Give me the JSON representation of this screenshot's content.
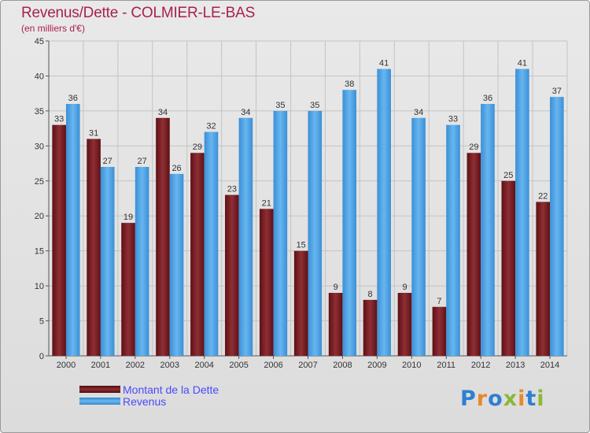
{
  "header": {
    "title": "Revenus/Dette - COLMIER-LE-BAS",
    "subtitle": "(en milliers d'€)"
  },
  "legend": [
    {
      "label": "Montant de la Dette",
      "color": "#7a1f25"
    },
    {
      "label": "Revenus",
      "color": "#4da3e6"
    }
  ],
  "logo": {
    "text": "Proxiti",
    "colors": [
      "#2f7fd0",
      "#e58a2a",
      "#2f7fd0",
      "#8ab83a",
      "#e58a2a",
      "#2f7fd0",
      "#8ab83a"
    ]
  },
  "chart_data": {
    "type": "bar",
    "categories": [
      "2000",
      "2001",
      "2002",
      "2003",
      "2004",
      "2005",
      "2006",
      "2007",
      "2008",
      "2009",
      "2010",
      "2011",
      "2012",
      "2013",
      "2014"
    ],
    "series": [
      {
        "name": "Montant de la Dette",
        "color": "#7a1f25",
        "values": [
          33,
          31,
          19,
          34,
          29,
          23,
          21,
          15,
          9,
          8,
          9,
          7,
          29,
          25,
          22
        ]
      },
      {
        "name": "Revenus",
        "color": "#4da3e6",
        "values": [
          36,
          27,
          27,
          26,
          32,
          34,
          35,
          35,
          38,
          41,
          34,
          33,
          36,
          41,
          37
        ]
      }
    ],
    "title": "Revenus/Dette - COLMIER-LE-BAS",
    "subtitle": "(en milliers d'€)",
    "ylim": [
      0,
      45
    ],
    "yticks": [
      0,
      5,
      10,
      15,
      20,
      25,
      30,
      35,
      40,
      45
    ],
    "grid": true,
    "legend_position": "bottom-left"
  }
}
